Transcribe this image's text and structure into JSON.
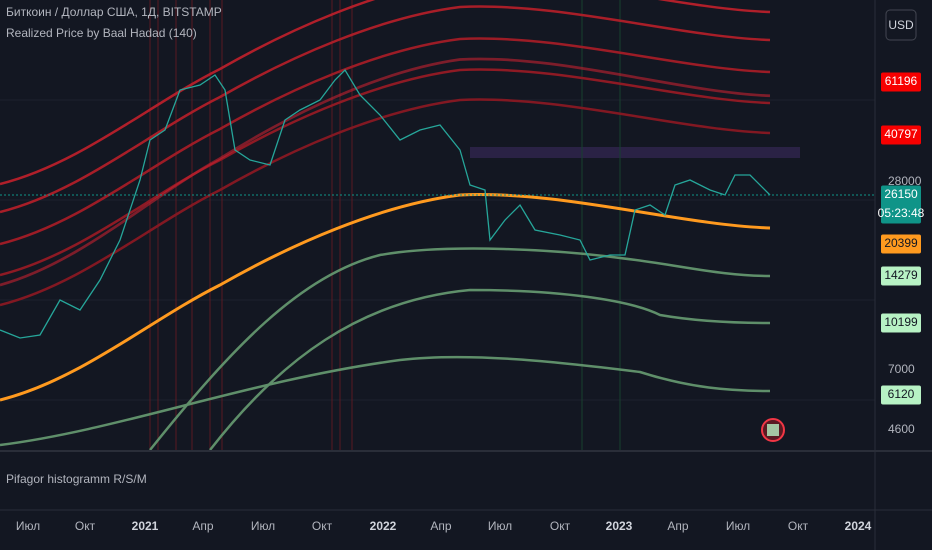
{
  "header": {
    "symbol": "Биткоин / Доллар США, 1Д, BITSTAMP",
    "indicator": "Realized Price by Baal Hadad (140)"
  },
  "currency": "USD",
  "price_scale": [
    "28000",
    "7000",
    "4600"
  ],
  "price_tags": [
    {
      "text": "61196",
      "background": "#f70000",
      "color": "#ffffff"
    },
    {
      "text": "40797",
      "background": "#f70000",
      "color": "#ffffff"
    },
    {
      "text": "26150",
      "background": "#0f9488",
      "color": "#ffffff"
    },
    {
      "text": "20399",
      "background": "#ff9a1f",
      "color": "#131722"
    },
    {
      "text": "14279",
      "background": "#b7f2c4",
      "color": "#131722"
    },
    {
      "text": "10199",
      "background": "#b7f2c4",
      "color": "#131722"
    },
    {
      "text": "6120",
      "background": "#b7f2c4",
      "color": "#131722"
    }
  ],
  "countdown": "05:23:48",
  "lower_pane": "Pifagor histogramm R/S/M",
  "time_axis": [
    "Июл",
    "Окт",
    "2021",
    "Апр",
    "Июл",
    "Окт",
    "2022",
    "Апр",
    "Июл",
    "Окт",
    "2023",
    "Апр",
    "Июл",
    "Окт",
    "2024"
  ]
}
